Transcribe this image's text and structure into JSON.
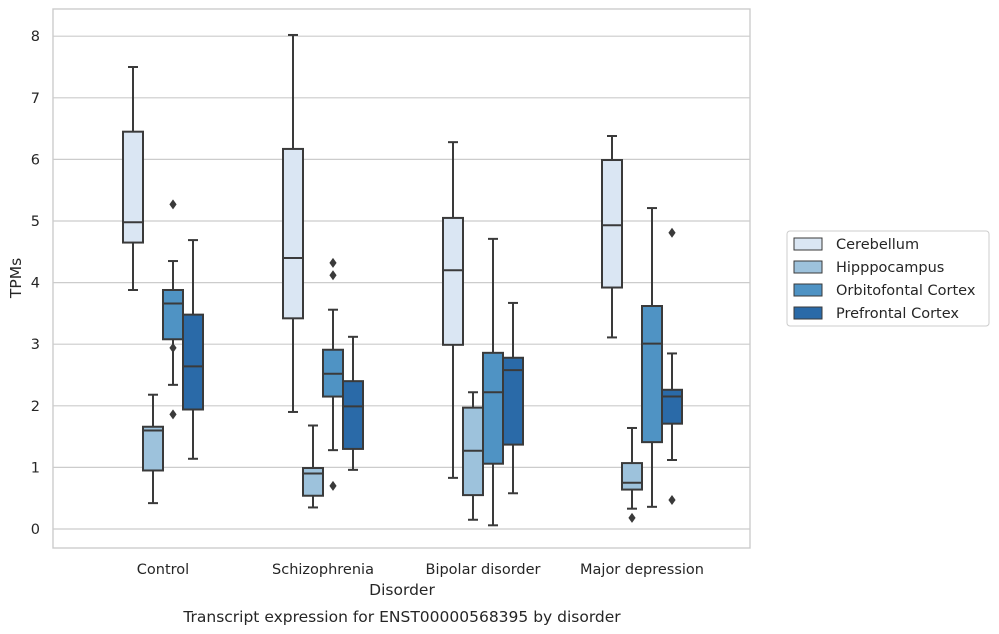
{
  "chart_data": {
    "type": "box",
    "caption": "Transcript expression for ENST00000568395 by disorder",
    "xlabel": "Disorder",
    "ylabel": "TPMs",
    "ylim": [
      -0.3,
      8.45
    ],
    "yticks": [
      "0",
      "1",
      "2",
      "3",
      "4",
      "5",
      "6",
      "7",
      "8"
    ],
    "grid": "horizontal",
    "legend_position": "right-outside",
    "categories": [
      "Control",
      "Schizophrenia",
      "Bipolar disorder",
      "Major depression"
    ],
    "series": [
      {
        "name": "Cerebellum",
        "color": "#dae6f3",
        "boxes": [
          {
            "whisker_low": 3.88,
            "q1": 4.65,
            "median": 4.98,
            "q3": 6.45,
            "whisker_high": 7.5,
            "outliers": []
          },
          {
            "whisker_low": 1.9,
            "q1": 3.42,
            "median": 4.4,
            "q3": 6.17,
            "whisker_high": 8.02,
            "outliers": []
          },
          {
            "whisker_low": 0.83,
            "q1": 2.99,
            "median": 4.2,
            "q3": 5.05,
            "whisker_high": 6.28,
            "outliers": []
          },
          {
            "whisker_low": 3.11,
            "q1": 3.92,
            "median": 4.93,
            "q3": 5.99,
            "whisker_high": 6.38,
            "outliers": []
          }
        ]
      },
      {
        "name": "Hipppocampus",
        "color": "#9dc2dc",
        "boxes": [
          {
            "whisker_low": 0.42,
            "q1": 0.95,
            "median": 1.6,
            "q3": 1.66,
            "whisker_high": 2.18,
            "outliers": []
          },
          {
            "whisker_low": 0.35,
            "q1": 0.54,
            "median": 0.9,
            "q3": 0.99,
            "whisker_high": 1.68,
            "outliers": []
          },
          {
            "whisker_low": 0.15,
            "q1": 0.55,
            "median": 1.27,
            "q3": 1.97,
            "whisker_high": 2.22,
            "outliers": []
          },
          {
            "whisker_low": 0.33,
            "q1": 0.64,
            "median": 0.75,
            "q3": 1.07,
            "whisker_high": 1.64,
            "outliers": [
              0.18
            ]
          }
        ]
      },
      {
        "name": "Orbitofontal Cortex",
        "color": "#4f93c4",
        "boxes": [
          {
            "whisker_low": 2.34,
            "q1": 3.08,
            "median": 3.66,
            "q3": 3.88,
            "whisker_high": 4.35,
            "outliers": [
              5.27,
              2.94,
              1.86
            ]
          },
          {
            "whisker_low": 1.28,
            "q1": 2.15,
            "median": 2.52,
            "q3": 2.91,
            "whisker_high": 3.56,
            "outliers": [
              4.32,
              4.12,
              0.7
            ]
          },
          {
            "whisker_low": 0.06,
            "q1": 1.06,
            "median": 2.22,
            "q3": 2.86,
            "whisker_high": 4.71,
            "outliers": []
          },
          {
            "whisker_low": 0.36,
            "q1": 1.41,
            "median": 3.01,
            "q3": 3.62,
            "whisker_high": 5.21,
            "outliers": []
          }
        ]
      },
      {
        "name": "Prefrontal Cortex",
        "color": "#2a6aa8",
        "boxes": [
          {
            "whisker_low": 1.14,
            "q1": 1.94,
            "median": 2.64,
            "q3": 3.48,
            "whisker_high": 4.69,
            "outliers": []
          },
          {
            "whisker_low": 0.96,
            "q1": 1.3,
            "median": 1.99,
            "q3": 2.4,
            "whisker_high": 3.12,
            "outliers": []
          },
          {
            "whisker_low": 0.58,
            "q1": 1.37,
            "median": 2.58,
            "q3": 2.78,
            "whisker_high": 3.67,
            "outliers": []
          },
          {
            "whisker_low": 1.12,
            "q1": 1.71,
            "median": 2.15,
            "q3": 2.26,
            "whisker_high": 2.85,
            "outliers": [
              4.81,
              0.47
            ]
          }
        ]
      }
    ]
  }
}
